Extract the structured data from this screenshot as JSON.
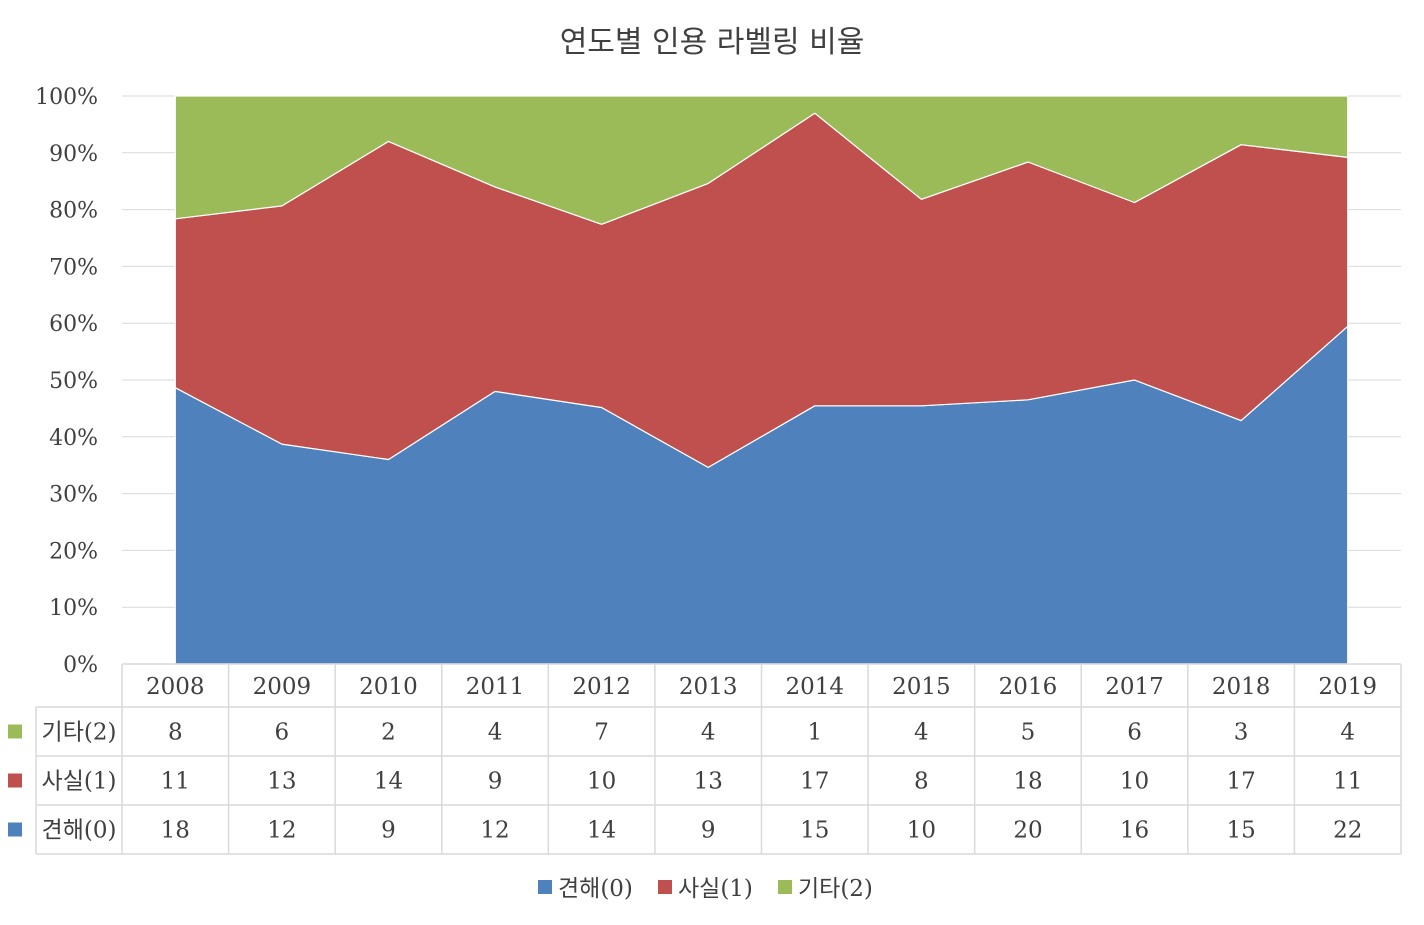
{
  "chart_data": {
    "type": "area",
    "stacked_percent": true,
    "title": "연도별 인용 라벨링 비율",
    "x": [
      "2008",
      "2009",
      "2010",
      "2011",
      "2012",
      "2013",
      "2014",
      "2015",
      "2016",
      "2017",
      "2018",
      "2019"
    ],
    "y_ticks": [
      "0%",
      "10%",
      "20%",
      "30%",
      "40%",
      "50%",
      "60%",
      "70%",
      "80%",
      "90%",
      "100%"
    ],
    "ylim": [
      0,
      100
    ],
    "grid": true,
    "legend_position": "bottom",
    "series": [
      {
        "name": "견해(0)",
        "color": "#4f81bd",
        "values": [
          18,
          12,
          9,
          12,
          14,
          9,
          15,
          10,
          20,
          16,
          15,
          22
        ]
      },
      {
        "name": "사실(1)",
        "color": "#c0504d",
        "values": [
          11,
          13,
          14,
          9,
          10,
          13,
          17,
          8,
          18,
          10,
          17,
          11
        ]
      },
      {
        "name": "기타(2)",
        "color": "#9bbb59",
        "values": [
          8,
          6,
          2,
          4,
          7,
          4,
          1,
          4,
          5,
          6,
          3,
          4
        ]
      }
    ],
    "table_row_order": [
      "기타(2)",
      "사실(1)",
      "견해(0)"
    ]
  }
}
